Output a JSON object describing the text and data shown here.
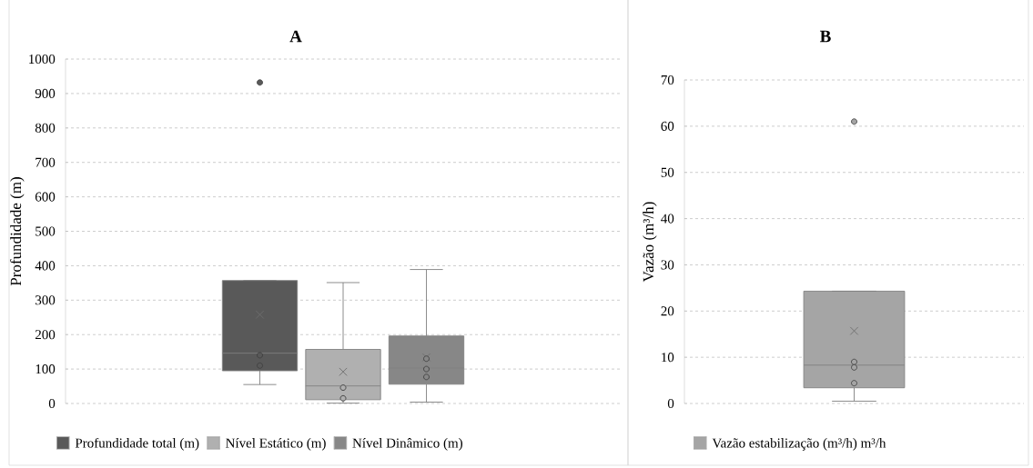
{
  "chart_data": [
    {
      "type": "box",
      "title": "A",
      "ylabel": "Profundidade (m)",
      "categories": [
        null
      ],
      "ylim": [
        0,
        1000
      ],
      "yticks": [
        0,
        100,
        200,
        300,
        400,
        500,
        600,
        700,
        800,
        900,
        1000
      ],
      "grid": "y",
      "legend": "bottom",
      "series": [
        {
          "name": "Profundidade total (m)",
          "color": "#595959",
          "boxes": [
            {
              "low": 55,
              "q1": 95,
              "median": 146,
              "q3": 357,
              "high": 357,
              "mean": 258,
              "outliers": [
                932,
                140,
                110
              ]
            }
          ]
        },
        {
          "name": "Nível Estático (m)",
          "color": "#b0b0b0",
          "boxes": [
            {
              "low": 1,
              "q1": 11,
              "median": 51,
              "q3": 157,
              "high": 351,
              "mean": 92,
              "outliers": [
                46,
                15
              ]
            }
          ]
        },
        {
          "name": "Nível Dinâmico (m)",
          "color": "#878787",
          "boxes": [
            {
              "low": 4,
              "q1": 56,
              "median": 103,
              "q3": 196,
              "high": 389,
              "mean": 134,
              "outliers": [
                130,
                100,
                77
              ]
            }
          ]
        }
      ]
    },
    {
      "type": "box",
      "title": "B",
      "ylabel": "Vazão (m³/h)",
      "categories": [
        null
      ],
      "ylim": [
        0,
        70
      ],
      "yticks": [
        0,
        10,
        20,
        30,
        40,
        50,
        60,
        70
      ],
      "grid": "y",
      "legend": "bottom",
      "series": [
        {
          "name": "Vazão estabilização (m³/h) m³/h",
          "color": "#a5a5a5",
          "boxes": [
            {
              "low": 0.5,
              "q1": 3.4,
              "median": 8.3,
              "q3": 24.3,
              "high": 24.3,
              "mean": 15.7,
              "outliers": [
                61,
                9.0,
                7.8,
                4.4
              ]
            }
          ]
        }
      ]
    }
  ]
}
